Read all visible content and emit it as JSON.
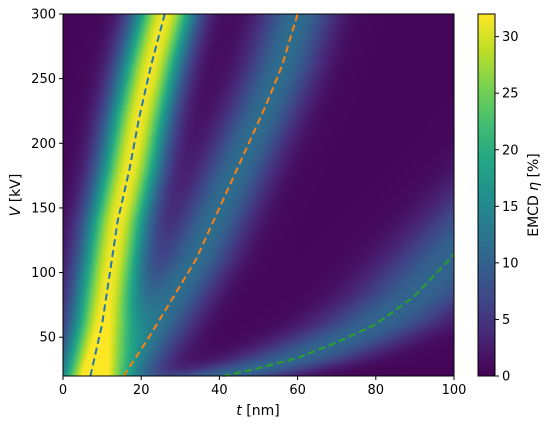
{
  "chart_data": {
    "type": "heatmap",
    "xlabel": {
      "var": "t",
      "unit": " [nm]"
    },
    "ylabel": {
      "var": "V",
      "unit": " [kV]"
    },
    "colorbar_label": {
      "prefix": "EMCD ",
      "var": "η",
      "unit": " [%]"
    },
    "xlim": [
      0,
      100
    ],
    "ylim": [
      20,
      300
    ],
    "clim": [
      0,
      32
    ],
    "x_ticks": [
      0,
      20,
      40,
      60,
      80,
      100
    ],
    "y_ticks": [
      50,
      100,
      150,
      200,
      250,
      300
    ],
    "colorbar_ticks": [
      0,
      5,
      10,
      15,
      20,
      25,
      30
    ],
    "colormap": "viridis",
    "dashed_curves": [
      {
        "color": "#1f77b4",
        "points": [
          [
            7,
            20
          ],
          [
            10,
            60
          ],
          [
            12,
            100
          ],
          [
            14,
            140
          ],
          [
            17,
            180
          ],
          [
            19.5,
            220
          ],
          [
            22.5,
            260
          ],
          [
            26,
            300
          ]
        ]
      },
      {
        "color": "#ff7f0e",
        "points": [
          [
            15.5,
            20
          ],
          [
            22,
            50
          ],
          [
            28,
            80
          ],
          [
            34,
            110
          ],
          [
            40,
            150
          ],
          [
            46,
            190
          ],
          [
            52,
            230
          ],
          [
            56,
            260
          ],
          [
            60,
            300
          ]
        ]
      },
      {
        "color": "#2ca02c",
        "points": [
          [
            41,
            20
          ],
          [
            50,
            26
          ],
          [
            60,
            34
          ],
          [
            70,
            46
          ],
          [
            80,
            60
          ],
          [
            90,
            82
          ],
          [
            100,
            114
          ]
        ]
      }
    ],
    "intensity_peaks": [
      {
        "curve": 0,
        "height": 31,
        "width": 5.5
      },
      {
        "curve": 1,
        "height": 11,
        "width": 6.5
      },
      {
        "curve": 2,
        "height": 10,
        "width": 11
      }
    ]
  }
}
